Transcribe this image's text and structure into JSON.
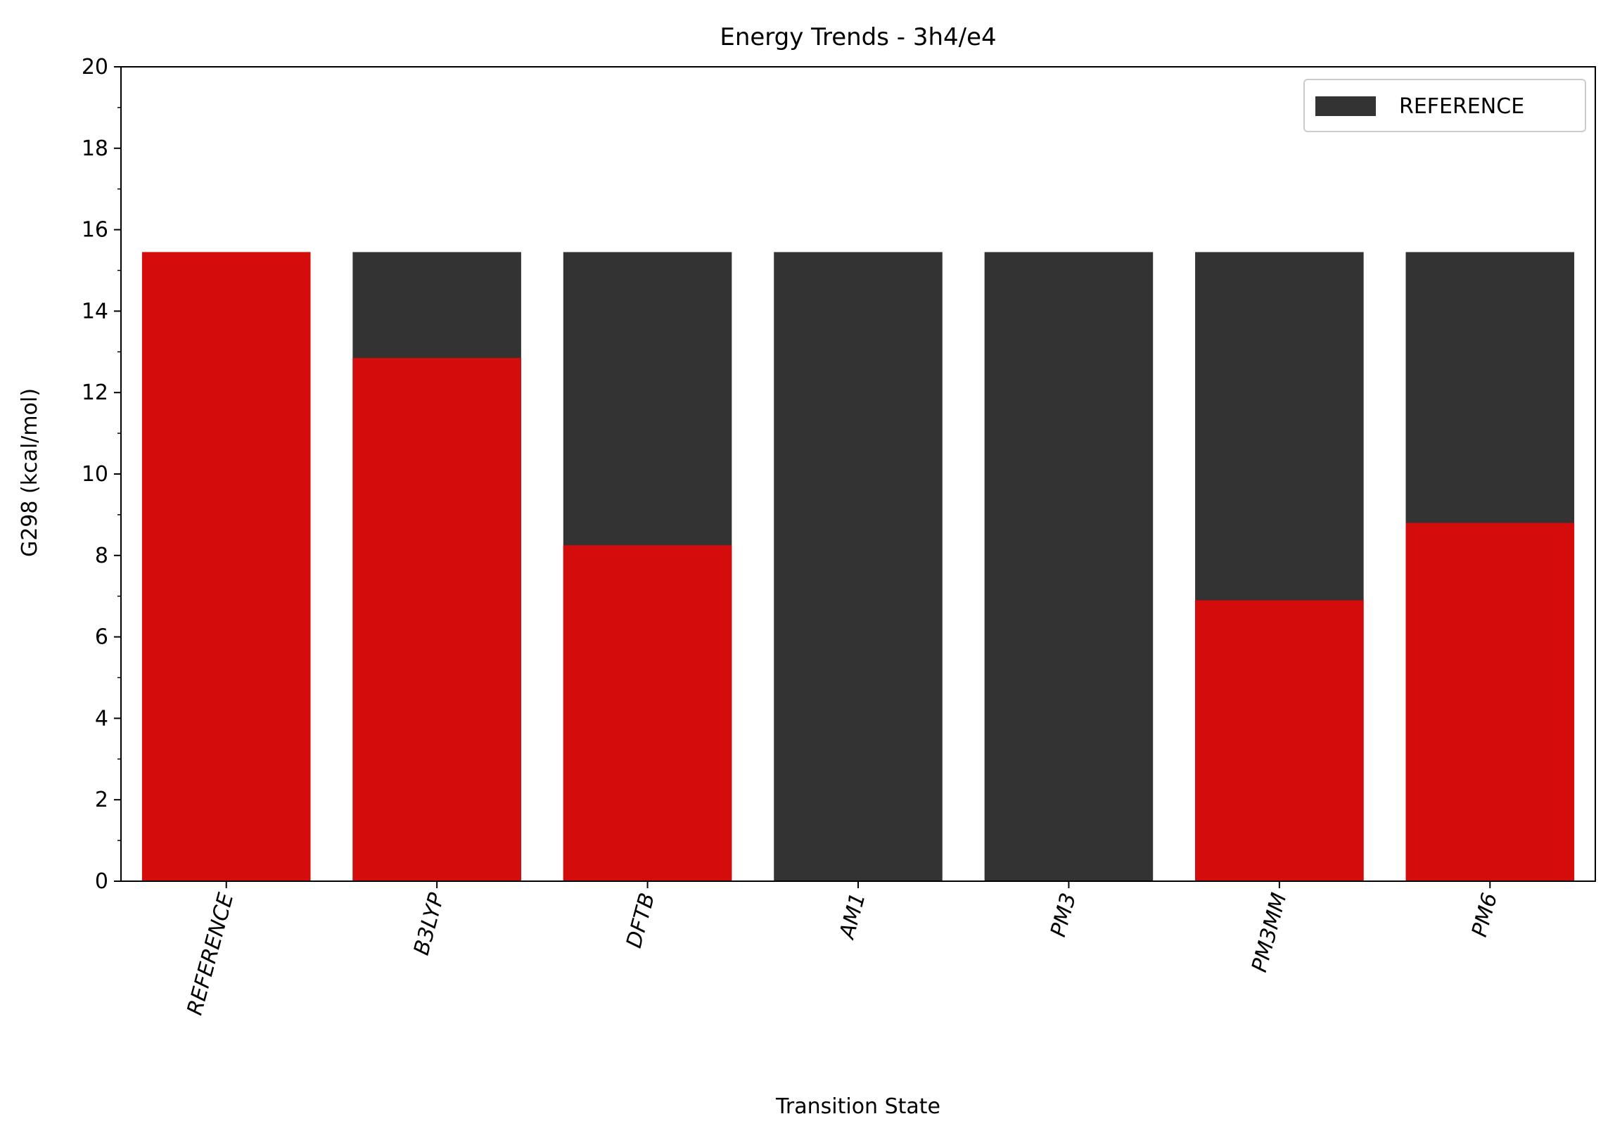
{
  "chart_data": {
    "type": "bar",
    "title": "Energy Trends - 3h4/e4",
    "xlabel": "Transition State",
    "ylabel": "G298 (kcal/mol)",
    "ylim": [
      0,
      20
    ],
    "yticks": [
      0,
      2,
      4,
      6,
      8,
      10,
      12,
      14,
      16,
      18,
      20
    ],
    "categories": [
      "REFERENCE",
      "B3LYP",
      "DFTB",
      "AM1",
      "PM3",
      "PM3MM",
      "PM6"
    ],
    "series": [
      {
        "name": "REFERENCE",
        "color": "#333333",
        "values": [
          15.45,
          15.45,
          15.45,
          15.45,
          15.45,
          15.45,
          15.45
        ]
      },
      {
        "color": "#d40c0c",
        "values": [
          15.45,
          12.85,
          8.25,
          null,
          null,
          6.9,
          8.8
        ]
      }
    ],
    "legend": {
      "position": "top-right",
      "entries": [
        "REFERENCE"
      ]
    },
    "grid": false
  }
}
